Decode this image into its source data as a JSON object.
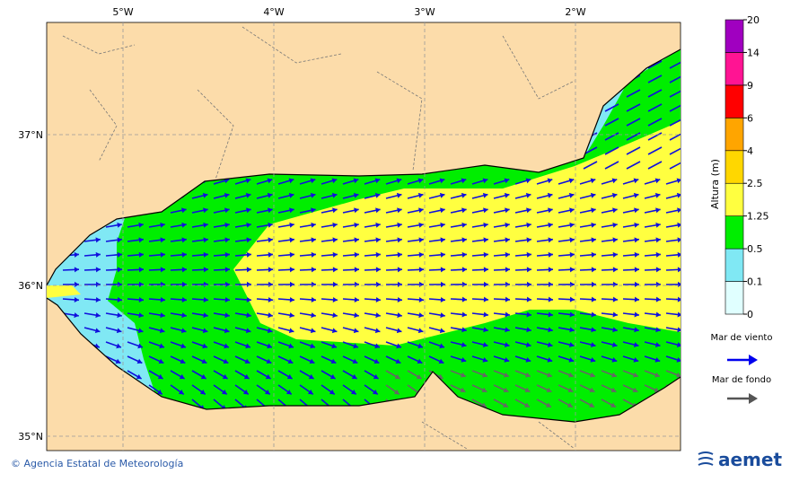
{
  "map": {
    "lon_ticks": [
      {
        "value": -5,
        "label": "5°W"
      },
      {
        "value": -4,
        "label": "4°W"
      },
      {
        "value": -3,
        "label": "3°W"
      },
      {
        "value": -2,
        "label": "2°W"
      }
    ],
    "lat_ticks": [
      {
        "value": 37,
        "label": "37°N"
      },
      {
        "value": 36,
        "label": "36°N"
      },
      {
        "value": 35,
        "label": "35°N"
      }
    ]
  },
  "colorbar": {
    "title": "Altura (m)",
    "levels": [
      0,
      0.1,
      0.5,
      1.25,
      2.5,
      4,
      6,
      9,
      14,
      20
    ],
    "colors": [
      "#e0ffff",
      "#80e8f4",
      "#00ee00",
      "#ffff40",
      "#ffd700",
      "#ffa500",
      "#ff0000",
      "#ff1493",
      "#a000c0"
    ]
  },
  "legend": {
    "wind_sea": "Mar de viento",
    "swell": "Mar de fondo"
  },
  "footer": "© Agencia Estatal de Meteorología",
  "logo": "aemet"
}
